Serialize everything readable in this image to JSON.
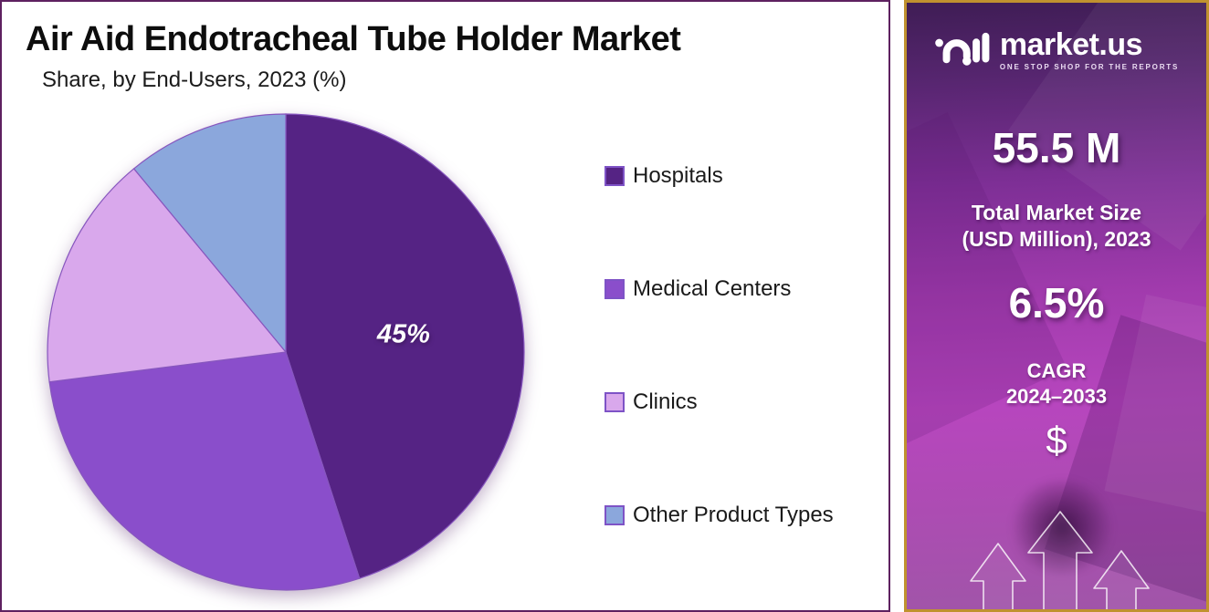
{
  "header": {
    "title": "Air Aid Endotracheal Tube Holder Market",
    "subtitle": "Share, by End-Users, 2023 (%)"
  },
  "chart_data": {
    "type": "pie",
    "title": "Air Aid Endotracheal Tube Holder Market",
    "subtitle": "Share, by End-Users, 2023 (%)",
    "unit": "percent",
    "start_angle": "12-oclock",
    "direction": "clockwise",
    "legend_position": "right",
    "slices": [
      {
        "label": "Hospitals",
        "value": 45,
        "color": "#552384",
        "data_label": "45%"
      },
      {
        "label": "Medical Centers",
        "value": 28,
        "color": "#8A4ECB",
        "data_label": ""
      },
      {
        "label": "Clinics",
        "value": 16,
        "color": "#D9A8EC",
        "data_label": ""
      },
      {
        "label": "Other Product Types",
        "value": 11,
        "color": "#8BA7DC",
        "data_label": ""
      }
    ],
    "slice_stroke": "#8756BE",
    "data_label_color": "#FFFFFF"
  },
  "sidebar": {
    "brand": {
      "name": "market.us",
      "tagline": "ONE STOP SHOP FOR THE REPORTS"
    },
    "market_size": {
      "value": "55.5 M",
      "caption_line1": "Total Market Size",
      "caption_line2": "(USD Million), 2023"
    },
    "cagr": {
      "value": "6.5%",
      "caption_line1": "CAGR",
      "caption_line2": "2024–2033"
    },
    "currency_symbol": "$"
  },
  "colors": {
    "chart_panel_border": "#5E2160",
    "sidebar_border": "#C0922F",
    "sidebar_gradient_top": "#3F1D55",
    "sidebar_gradient_mid": "#A83EB2",
    "sidebar_gradient_bottom": "#A055A8"
  }
}
